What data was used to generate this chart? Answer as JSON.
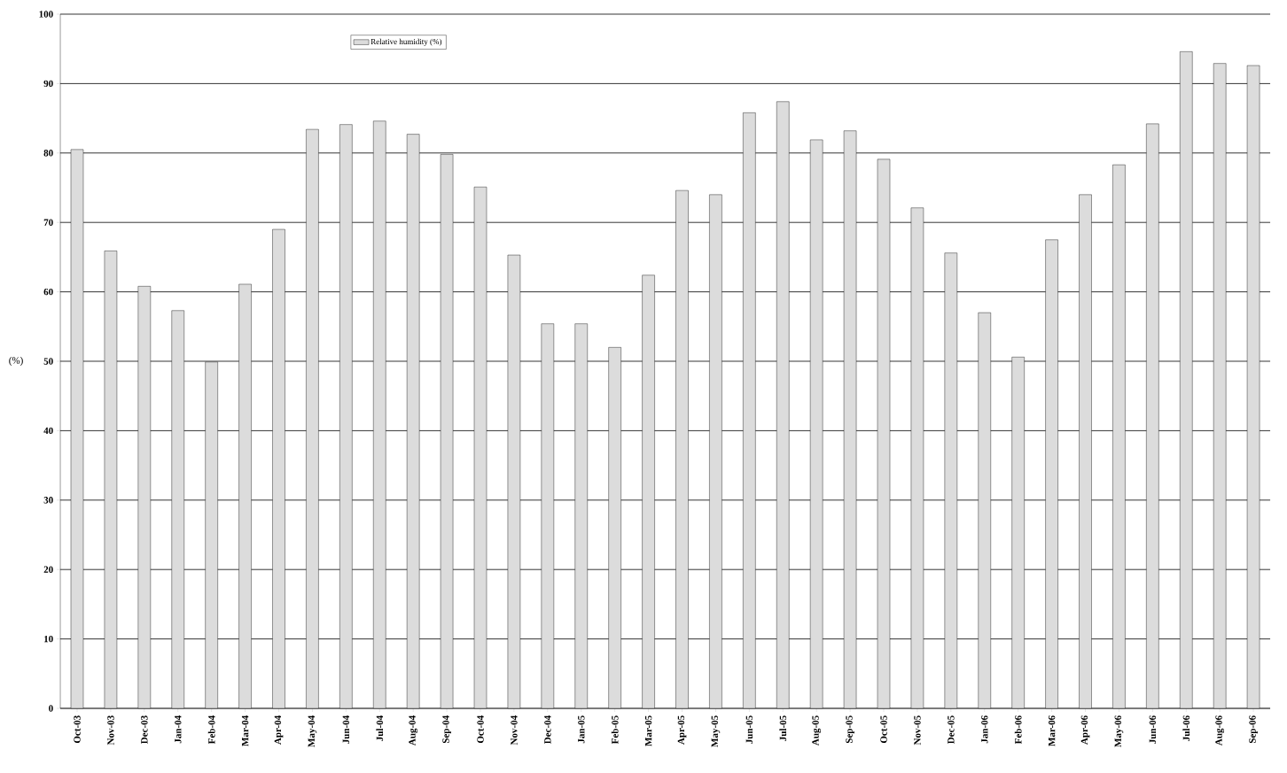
{
  "chart_data": {
    "type": "bar",
    "ylabel": "(%)",
    "categories": [
      "Oct-03",
      "Nov-03",
      "Dec-03",
      "Jan-04",
      "Feb-04",
      "Mar-04",
      "Apr-04",
      "May-04",
      "Jun-04",
      "Jul-04",
      "Aug-04",
      "Sep-04",
      "Oct-04",
      "Nov-04",
      "Dec-04",
      "Jan-05",
      "Feb-05",
      "Mar-05",
      "Apr-05",
      "May-05",
      "Jun-05",
      "Jul-05",
      "Aug-05",
      "Sep-05",
      "Oct-05",
      "Nov-05",
      "Dec-05",
      "Jan-06",
      "Feb-06",
      "Mar-06",
      "Apr-06",
      "May-06",
      "Jun-06",
      "Jul-06",
      "Aug-06",
      "Sep-06"
    ],
    "series": [
      {
        "name": "Relative humidity (%)",
        "color": "#dcdcdc",
        "values": [
          80.5,
          65.9,
          60.8,
          57.3,
          49.9,
          61.1,
          69.0,
          83.4,
          84.1,
          84.6,
          82.7,
          79.8,
          75.1,
          65.3,
          55.4,
          55.4,
          52.0,
          62.4,
          74.6,
          74.0,
          85.8,
          87.4,
          81.9,
          83.2,
          79.1,
          72.1,
          65.6,
          57.0,
          50.6,
          67.5,
          74.0,
          78.3,
          84.2,
          94.6,
          92.9,
          92.6
        ]
      }
    ],
    "ylim": [
      0,
      100
    ],
    "yticks": [
      0,
      10,
      20,
      30,
      40,
      50,
      60,
      70,
      80,
      90,
      100
    ],
    "grid": "y",
    "legend": "top left"
  }
}
